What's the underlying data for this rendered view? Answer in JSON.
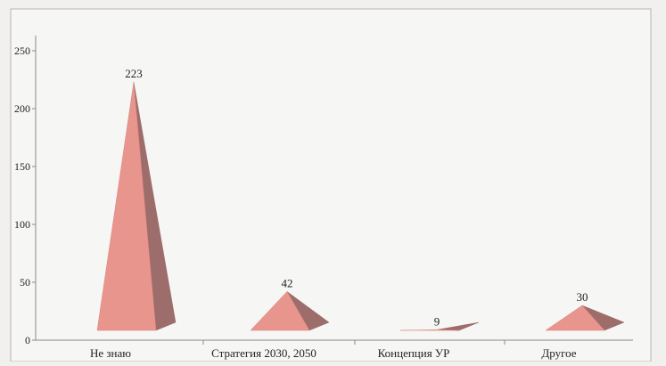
{
  "chart_data": {
    "type": "bar",
    "bar_shape": "pyramid-3d",
    "categories": [
      "Не знаю",
      "Стратегия 2030, 2050",
      "Концепция УР",
      "Другое"
    ],
    "values": [
      223,
      42,
      9,
      30
    ],
    "data_labels": [
      "223",
      "42",
      "9",
      "30"
    ],
    "ylim": [
      0,
      250
    ],
    "y_ticks": [
      0,
      50,
      100,
      150,
      200,
      250
    ],
    "y_tick_labels": [
      "0",
      "50",
      "100",
      "150",
      "200",
      "250"
    ],
    "title": "",
    "xlabel": "",
    "ylabel": "",
    "grid": false,
    "legend": "none",
    "colors": {
      "face": "#e8958e",
      "side": "#9c6d6a",
      "face_dark": "#d9827c",
      "axis": "#8a8a8a",
      "frame": "#b5b5b5",
      "text": "#222222",
      "background": "#f6f6f4"
    }
  }
}
